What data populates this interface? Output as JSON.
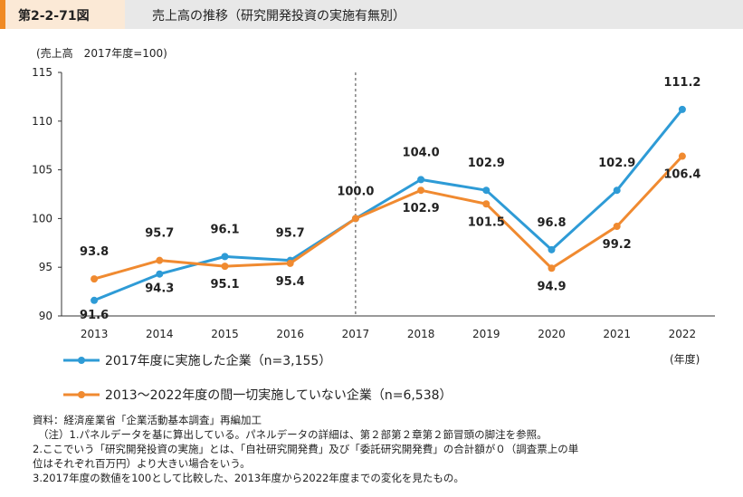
{
  "header": {
    "figure_number": "第2-2-71図",
    "title": "売上高の推移（研究開発投資の実施有無別）"
  },
  "unit_label": "(売上高　2017年度=100)",
  "x_unit_label": "(年度)",
  "notes": [
    "資料：経済産業省「企業活動基本調査」再編加工",
    "（注）1.パネルデータを基に算出している。パネルデータの詳細は、第２部第２章第２節冒頭の脚注を参照。",
    "2.ここでいう「研究開発投資の実施」とは、「自社研究開発費」及び「委託研究開発費」の合計額が０（調査票上の単",
    "位はそれぞれ百万円）より大きい場合をいう。",
    "3.2017年度の数値を100として比較した、2013年度から2022年度までの変化を見たもの。"
  ],
  "chart_data": {
    "type": "line",
    "categories": [
      "2013",
      "2014",
      "2015",
      "2016",
      "2017",
      "2018",
      "2019",
      "2020",
      "2021",
      "2022"
    ],
    "ylim": [
      90,
      115
    ],
    "yticks": [
      90,
      95,
      100,
      105,
      110,
      115
    ],
    "grid": false,
    "reference_line_at": "2017",
    "legend_placement": "bottom",
    "series": [
      {
        "name": "2017年度に実施した企業（n=3,155）",
        "color": "#2e9bd6",
        "values": [
          91.6,
          94.3,
          96.1,
          95.7,
          100.0,
          104.0,
          102.9,
          96.8,
          102.9,
          111.2
        ],
        "labels": [
          "91.6",
          "94.3",
          "96.1",
          "95.7",
          "100.0",
          "104.0",
          "102.9",
          "96.8",
          "102.9",
          "111.2"
        ]
      },
      {
        "name": "2013～2022年度の間一切実施していない企業（n=6,538）",
        "color": "#f08a30",
        "values": [
          93.8,
          95.7,
          95.1,
          95.4,
          100.0,
          102.9,
          101.5,
          94.9,
          99.2,
          106.4
        ],
        "labels": [
          "93.8",
          "95.7",
          "95.1",
          "95.4",
          "",
          "102.9",
          "101.5",
          "94.9",
          "99.2",
          "106.4"
        ]
      }
    ]
  }
}
